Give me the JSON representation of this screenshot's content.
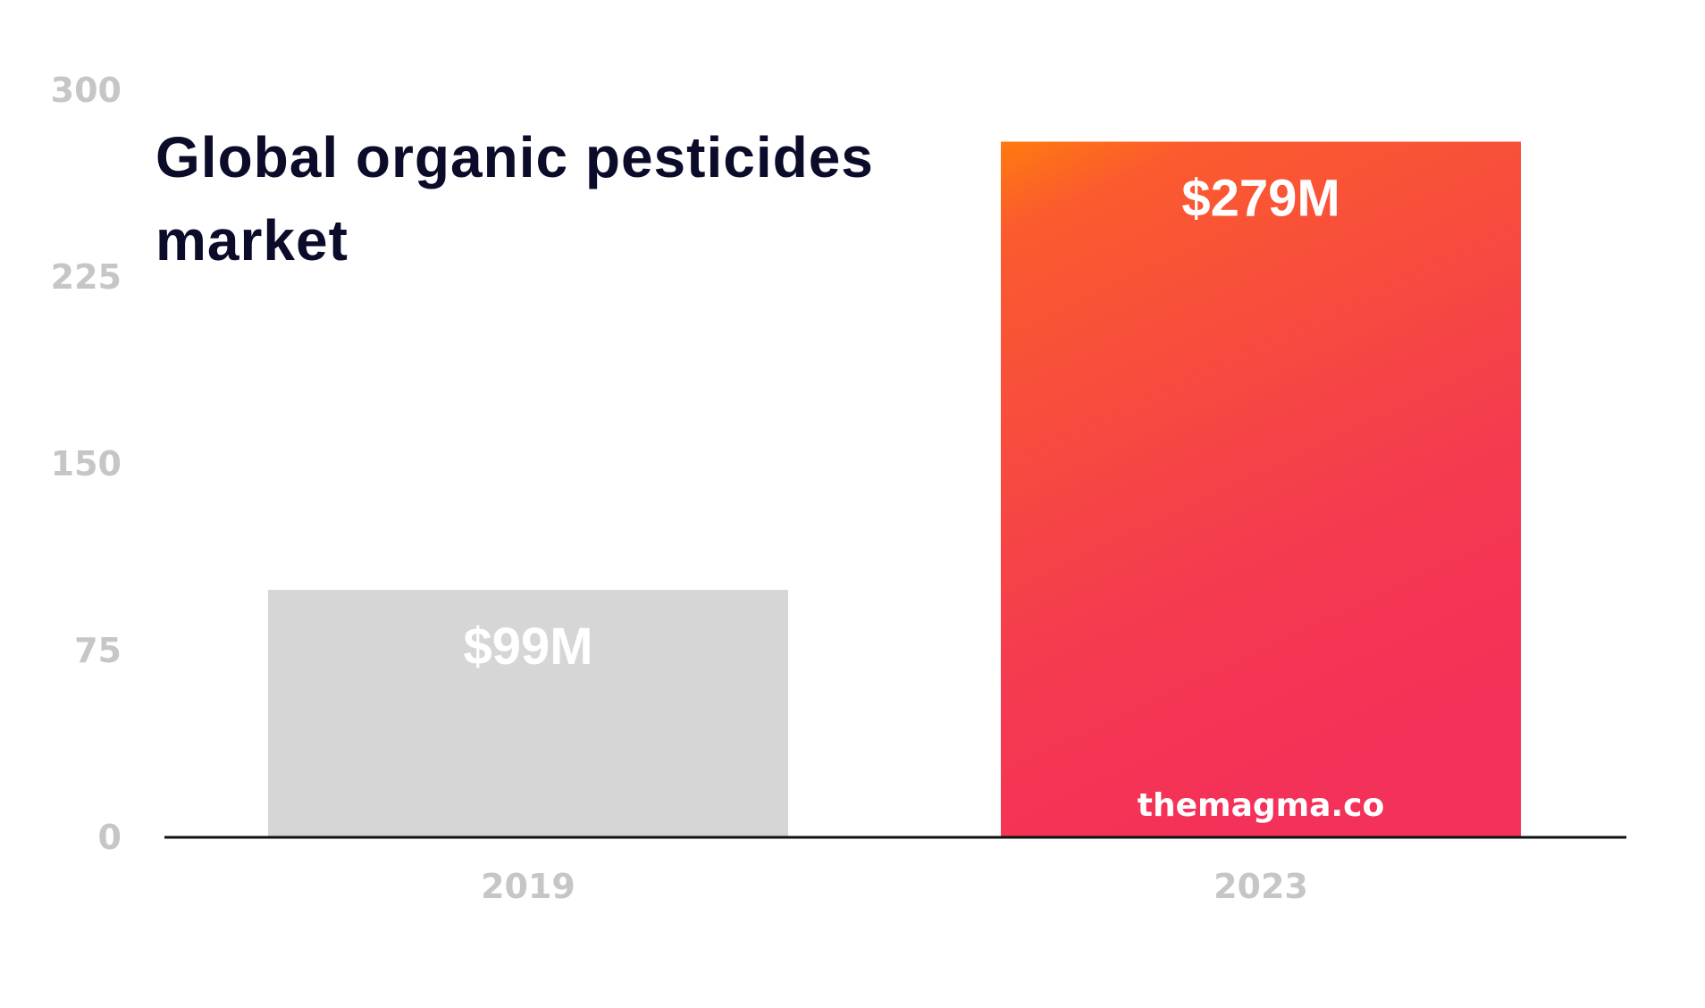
{
  "chart_data": {
    "type": "bar",
    "title": "Global organic pesticides market",
    "categories": [
      "2019",
      "2023"
    ],
    "values": [
      99,
      279
    ],
    "value_labels": [
      "$99M",
      "$279M"
    ],
    "ylim": [
      0,
      300
    ],
    "yticks": [
      0,
      75,
      150,
      225,
      300
    ],
    "xlabel": "",
    "ylabel": "",
    "grid": false,
    "legend": "none",
    "colors": {
      "bar_2019": "#d6d6d6",
      "bar_2023_top": "#ff7a0f",
      "bar_2023_bottom": "#f43158",
      "tick_label": "#c6c6c6",
      "axis": "#111111",
      "title": "#0b0b2a"
    }
  },
  "watermark": "themagma.co"
}
